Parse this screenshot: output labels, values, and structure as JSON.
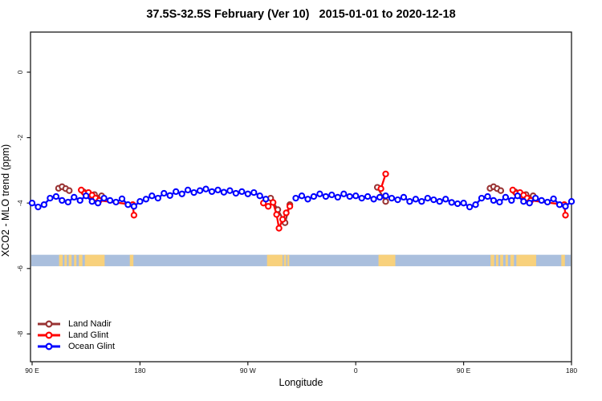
{
  "title": "37.5S-32.5S February (Ver 10)   2015-01-01 to 2020-12-18",
  "chart_data": {
    "type": "line",
    "title": "37.5S-32.5S February (Ver 10)   2015-01-01 to 2020-12-18",
    "xlabel": "Longitude",
    "ylabel": "XCO2 - MLO trend (ppm)",
    "xlim": [
      90,
      540
    ],
    "ylim": [
      -8.9,
      1.25
    ],
    "grid": false,
    "legend_position": "bottom-left",
    "x_ticks": [
      {
        "value": 90,
        "label": "90 E"
      },
      {
        "value": 180,
        "label": "180"
      },
      {
        "value": 270,
        "label": "90 W"
      },
      {
        "value": 360,
        "label": "0"
      },
      {
        "value": 450,
        "label": "90 E"
      },
      {
        "value": 540,
        "label": "180"
      }
    ],
    "y_ticks": [
      {
        "value": 0,
        "label": "0"
      },
      {
        "value": -2,
        "label": "-2"
      },
      {
        "value": -4,
        "label": "-4"
      },
      {
        "value": -6,
        "label": "-6"
      },
      {
        "value": -8,
        "label": "-8"
      }
    ],
    "legend": [
      {
        "name": "Land Nadir",
        "color": "#993333"
      },
      {
        "name": "Land Glint",
        "color": "#FF0000"
      },
      {
        "name": "Ocean Glint",
        "color": "#0000FF"
      }
    ],
    "map_strip": {
      "description": "land-ocean mask strip",
      "ocean_color": "#AABFDD",
      "land_color": "#F8D17C",
      "value_range": [
        -5.93,
        -5.58
      ],
      "land_patches_lon": [
        [
          112.5,
          115.5
        ],
        [
          117,
          119
        ],
        [
          120.5,
          123
        ],
        [
          125,
          127
        ],
        [
          129,
          132
        ],
        [
          134,
          150.5
        ],
        [
          171.5,
          174.5
        ],
        [
          286,
          299
        ],
        [
          300,
          302
        ],
        [
          303,
          304.5
        ],
        [
          379,
          393
        ],
        [
          472.5,
          475.5
        ],
        [
          477,
          479
        ],
        [
          480.5,
          483
        ],
        [
          485,
          487
        ],
        [
          489,
          492
        ],
        [
          494,
          510.5
        ],
        [
          531.5,
          534.5
        ]
      ]
    },
    "series": [
      {
        "name": "Land Nadir",
        "color": "#993333",
        "segments": [
          [
            [
              112,
              -3.55
            ],
            [
              115,
              -3.5
            ],
            [
              118,
              -3.56
            ],
            [
              121,
              -3.62
            ]
          ],
          [
            [
              133,
              -3.66
            ],
            [
              136,
              -3.72
            ],
            [
              139,
              -3.8
            ],
            [
              142,
              -3.74
            ],
            [
              145,
              -3.85
            ],
            [
              148,
              -3.78
            ]
          ],
          [
            [
              289,
              -3.85
            ],
            [
              295,
              -4.2
            ],
            [
              301,
              -4.6
            ],
            [
              305,
              -4.05
            ]
          ],
          [
            [
              378,
              -3.52
            ],
            [
              385,
              -3.95
            ]
          ],
          [
            [
              472,
              -3.55
            ],
            [
              475,
              -3.5
            ],
            [
              478,
              -3.56
            ],
            [
              481,
              -3.62
            ]
          ],
          [
            [
              493,
              -3.66
            ],
            [
              496,
              -3.72
            ],
            [
              499,
              -3.8
            ],
            [
              502,
              -3.74
            ],
            [
              505,
              -3.85
            ],
            [
              508,
              -3.78
            ]
          ]
        ]
      },
      {
        "name": "Land Glint",
        "color": "#FF0000",
        "segments": [
          [
            [
              131,
              -3.6
            ],
            [
              134,
              -3.7
            ],
            [
              137,
              -3.68
            ],
            [
              140,
              -3.76
            ],
            [
              143,
              -3.85
            ],
            [
              146,
              -3.92
            ],
            [
              174,
              -4.05
            ],
            [
              175,
              -4.37
            ]
          ],
          [
            [
              283,
              -4.0
            ],
            [
              287,
              -4.1
            ],
            [
              291,
              -3.98
            ],
            [
              294,
              -4.35
            ],
            [
              296,
              -4.77
            ],
            [
              299,
              -4.5
            ],
            [
              302,
              -4.3
            ],
            [
              305,
              -4.1
            ]
          ],
          [
            [
              381,
              -3.56
            ],
            [
              385,
              -3.11
            ]
          ],
          [
            [
              491,
              -3.6
            ],
            [
              494,
              -3.7
            ],
            [
              497,
              -3.68
            ],
            [
              500,
              -3.76
            ],
            [
              503,
              -3.85
            ],
            [
              506,
              -3.92
            ],
            [
              534,
              -4.05
            ],
            [
              535,
              -4.37
            ]
          ]
        ]
      },
      {
        "name": "Ocean Glint",
        "color": "#0000FF",
        "segments": [
          [
            [
              90,
              -4.0
            ],
            [
              95,
              -4.12
            ],
            [
              100,
              -4.05
            ],
            [
              105,
              -3.85
            ],
            [
              110,
              -3.8
            ],
            [
              115,
              -3.92
            ],
            [
              120,
              -3.97
            ],
            [
              125,
              -3.82
            ],
            [
              130,
              -3.92
            ],
            [
              135,
              -3.78
            ],
            [
              140,
              -3.95
            ],
            [
              145,
              -4.0
            ],
            [
              150,
              -3.85
            ],
            [
              155,
              -3.92
            ],
            [
              160,
              -3.97
            ],
            [
              165,
              -3.87
            ],
            [
              170,
              -4.05
            ],
            [
              175,
              -4.1
            ],
            [
              180,
              -3.95
            ],
            [
              185,
              -3.88
            ],
            [
              190,
              -3.78
            ],
            [
              195,
              -3.85
            ],
            [
              200,
              -3.7
            ],
            [
              205,
              -3.77
            ],
            [
              210,
              -3.65
            ],
            [
              215,
              -3.72
            ],
            [
              220,
              -3.6
            ],
            [
              225,
              -3.68
            ],
            [
              230,
              -3.62
            ],
            [
              235,
              -3.57
            ],
            [
              240,
              -3.65
            ],
            [
              245,
              -3.6
            ],
            [
              250,
              -3.67
            ],
            [
              255,
              -3.62
            ],
            [
              260,
              -3.7
            ],
            [
              265,
              -3.65
            ],
            [
              270,
              -3.72
            ],
            [
              275,
              -3.68
            ],
            [
              280,
              -3.78
            ],
            [
              285,
              -3.88
            ]
          ],
          [
            [
              310,
              -3.85
            ],
            [
              315,
              -3.78
            ],
            [
              320,
              -3.88
            ],
            [
              325,
              -3.8
            ],
            [
              330,
              -3.72
            ],
            [
              335,
              -3.8
            ],
            [
              340,
              -3.75
            ],
            [
              345,
              -3.82
            ],
            [
              350,
              -3.72
            ],
            [
              355,
              -3.8
            ],
            [
              360,
              -3.78
            ],
            [
              365,
              -3.85
            ],
            [
              370,
              -3.8
            ],
            [
              375,
              -3.88
            ],
            [
              380,
              -3.82
            ],
            [
              385,
              -3.78
            ],
            [
              390,
              -3.85
            ],
            [
              395,
              -3.9
            ],
            [
              400,
              -3.82
            ],
            [
              405,
              -3.95
            ],
            [
              410,
              -3.88
            ],
            [
              415,
              -3.95
            ],
            [
              420,
              -3.85
            ],
            [
              425,
              -3.9
            ],
            [
              430,
              -3.95
            ],
            [
              435,
              -3.88
            ],
            [
              440,
              -3.98
            ],
            [
              445,
              -4.02
            ],
            [
              450,
              -4.0
            ],
            [
              455,
              -4.12
            ],
            [
              460,
              -4.05
            ],
            [
              465,
              -3.85
            ],
            [
              470,
              -3.8
            ],
            [
              475,
              -3.92
            ],
            [
              480,
              -3.97
            ],
            [
              485,
              -3.82
            ],
            [
              490,
              -3.92
            ],
            [
              495,
              -3.78
            ],
            [
              500,
              -3.95
            ],
            [
              505,
              -4.0
            ],
            [
              510,
              -3.85
            ],
            [
              515,
              -3.92
            ],
            [
              520,
              -3.97
            ],
            [
              525,
              -3.87
            ],
            [
              530,
              -4.05
            ],
            [
              535,
              -4.1
            ],
            [
              540,
              -3.95
            ]
          ]
        ]
      }
    ]
  }
}
